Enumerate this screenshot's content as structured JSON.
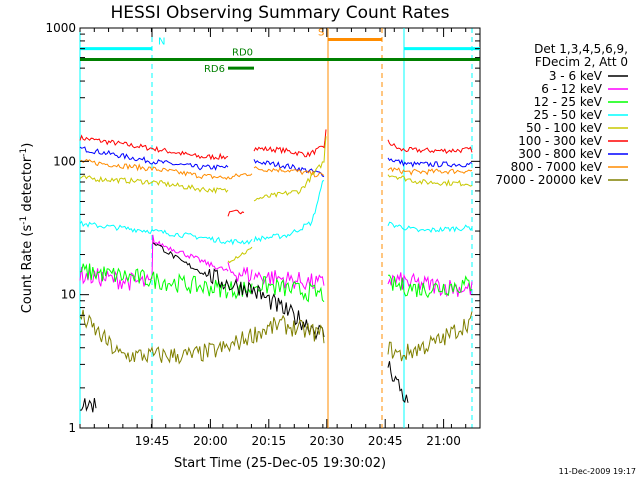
{
  "chart_data": {
    "type": "line",
    "title": "HESSI Observing Summary Count Rates",
    "xlabel": "Start Time (25-Dec-05 19:30:02)",
    "ylabel_main": "Count Rate (s",
    "ylabel_sup1": "-1",
    "ylabel_mid": " detector",
    "ylabel_sup2": "-1",
    "ylabel_end": ")",
    "footer": "11-Dec-2009 19:17",
    "y_scale": "log",
    "ylim": [
      1,
      1000
    ],
    "xlim": [
      0,
      100
    ],
    "x_ticks": [
      {
        "label": "19:45",
        "x": 18
      },
      {
        "label": "20:00",
        "x": 32.6
      },
      {
        "label": "20:15",
        "x": 47.2
      },
      {
        "label": "20:30",
        "x": 61.7
      },
      {
        "label": "20:45",
        "x": 76.3
      },
      {
        "label": "21:00",
        "x": 90.9
      }
    ],
    "y_ticks": [
      {
        "label": "1",
        "y": 1
      },
      {
        "label": "10",
        "y": 10
      },
      {
        "label": "100",
        "y": 100
      },
      {
        "label": "1000",
        "y": 1000
      }
    ],
    "legend": {
      "header1": "Det 1,3,4,5,6,9,",
      "header2": "FDecim 2, Att 0",
      "entries": [
        {
          "label": "3 - 6 keV",
          "color": "#000000"
        },
        {
          "label": "6 - 12 keV",
          "color": "#ff00ff"
        },
        {
          "label": "12 - 25 keV",
          "color": "#00ff00"
        },
        {
          "label": "25 - 50 keV",
          "color": "#00ffff"
        },
        {
          "label": "50 - 100 keV",
          "color": "#c8c800"
        },
        {
          "label": "100 - 300 keV",
          "color": "#ff0000"
        },
        {
          "label": "300 - 800 keV",
          "color": "#0000ff"
        },
        {
          "label": "800 - 7000 keV",
          "color": "#ff8c00"
        },
        {
          "label": "7000 - 20000 keV",
          "color": "#808000"
        }
      ]
    },
    "flags": [
      {
        "label": "N",
        "color": "#00ffff",
        "segments": [
          [
            0,
            18
          ],
          [
            81,
            100
          ]
        ],
        "y": 700
      },
      {
        "label": "RD0",
        "color": "#008000",
        "segments": [
          [
            0,
            100
          ]
        ],
        "y": 580
      },
      {
        "label": "RD6",
        "color": "#008000",
        "segments": [
          [
            37,
            43.5
          ]
        ],
        "y": 500
      },
      {
        "label": "S",
        "color": "#ff8c00",
        "segments": [
          [
            62,
            75.5
          ]
        ],
        "y": 820
      }
    ],
    "markers": [
      {
        "x": 0,
        "color": "#00ffff",
        "style": "solid"
      },
      {
        "x": 18,
        "color": "#00ffff",
        "style": "dashed"
      },
      {
        "x": 62,
        "color": "#ff8c00",
        "style": "solid"
      },
      {
        "x": 75.5,
        "color": "#ff8c00",
        "style": "dashed"
      },
      {
        "x": 81,
        "color": "#00ffff",
        "style": "solid"
      },
      {
        "x": 98,
        "color": "#00ffff",
        "style": "dashed"
      }
    ],
    "gap": [
      61.5,
      77
    ],
    "series": [
      {
        "color": "#ff0000",
        "segments": [
          [
            [
              0,
              150
            ],
            [
              18,
              125
            ],
            [
              30,
              108
            ],
            [
              37,
              108
            ]
          ],
          [
            [
              37,
              40
            ],
            [
              41,
              43
            ]
          ],
          [
            [
              43.5,
              125
            ],
            [
              50,
              122
            ],
            [
              57,
              112
            ],
            [
              61,
              128
            ],
            [
              61.5,
              170
            ]
          ],
          [
            [
              77,
              140
            ],
            [
              80,
              122
            ],
            [
              90,
              120
            ],
            [
              98,
              122
            ]
          ]
        ]
      },
      {
        "color": "#0000ff",
        "segments": [
          [
            [
              0,
              125
            ],
            [
              18,
              100
            ],
            [
              30,
              90
            ],
            [
              37,
              90
            ]
          ],
          [
            [
              43.5,
              100
            ],
            [
              52,
              92
            ],
            [
              61,
              80
            ]
          ],
          [
            [
              77,
              105
            ],
            [
              82,
              95
            ],
            [
              98,
              95
            ]
          ]
        ]
      },
      {
        "color": "#ff8c00",
        "segments": [
          [
            [
              0,
              100
            ],
            [
              18,
              88
            ],
            [
              30,
              78
            ],
            [
              37,
              75
            ]
          ],
          [
            [
              37,
              75
            ],
            [
              43,
              82
            ]
          ],
          [
            [
              43.5,
              88
            ],
            [
              52,
              86
            ],
            [
              61,
              78
            ]
          ],
          [
            [
              77,
              88
            ],
            [
              82,
              83
            ],
            [
              98,
              85
            ]
          ]
        ]
      },
      {
        "color": "#c8c800",
        "segments": [
          [
            [
              0,
              75
            ],
            [
              18,
              70
            ],
            [
              30,
              62
            ],
            [
              37,
              60
            ]
          ],
          [
            [
              37,
              18
            ],
            [
              43,
              22
            ]
          ],
          [
            [
              43.5,
              52
            ],
            [
              55,
              60
            ],
            [
              61,
              100
            ],
            [
              61.5,
              160
            ]
          ],
          [
            [
              77,
              80
            ],
            [
              85,
              70
            ],
            [
              98,
              68
            ]
          ]
        ]
      },
      {
        "color": "#00ffff",
        "segments": [
          [
            [
              0,
              34
            ],
            [
              18,
              30
            ],
            [
              30,
              27
            ],
            [
              37,
              25
            ]
          ],
          [
            [
              37,
              25
            ],
            [
              43,
              25
            ]
          ],
          [
            [
              43.5,
              26
            ],
            [
              52,
              28
            ],
            [
              58,
              35
            ],
            [
              61,
              75
            ]
          ],
          [
            [
              77,
              34
            ],
            [
              85,
              30
            ],
            [
              98,
              32
            ]
          ]
        ]
      },
      {
        "color": "#ff00ff",
        "segments": [
          [
            [
              0,
              14
            ],
            [
              18,
              12
            ],
            [
              18.2,
              25
            ],
            [
              25,
              21
            ],
            [
              32,
              17
            ],
            [
              37,
              15
            ]
          ],
          [
            [
              37,
              15
            ],
            [
              43,
              14
            ]
          ],
          [
            [
              43.5,
              14
            ],
            [
              52,
              13
            ],
            [
              61,
              12
            ]
          ],
          [
            [
              77,
              13
            ],
            [
              85,
              12
            ],
            [
              98,
              11
            ]
          ]
        ]
      },
      {
        "color": "#00ff00",
        "segments": [
          [
            [
              0,
              15
            ],
            [
              18,
              13
            ],
            [
              30,
              11.5
            ],
            [
              37,
              11
            ]
          ],
          [
            [
              37,
              11
            ],
            [
              43,
              11
            ]
          ],
          [
            [
              43.5,
              12
            ],
            [
              52,
              11
            ],
            [
              61,
              10
            ]
          ],
          [
            [
              77,
              12
            ],
            [
              85,
              11
            ],
            [
              98,
              12
            ]
          ]
        ]
      },
      {
        "color": "#000000",
        "segments": [
          [
            [
              0,
              1.5
            ],
            [
              4,
              1.5
            ]
          ],
          [
            [
              18.2,
              25
            ],
            [
              25,
              18
            ],
            [
              32,
              14
            ],
            [
              37,
              12
            ],
            [
              43,
              11
            ],
            [
              50,
              8
            ],
            [
              55,
              6.5
            ],
            [
              61,
              5
            ]
          ],
          [
            [
              77,
              3
            ],
            [
              80,
              2
            ],
            [
              82,
              1.5
            ]
          ]
        ]
      },
      {
        "color": "#808000",
        "segments": [
          [
            [
              0,
              7
            ],
            [
              5,
              5
            ],
            [
              10,
              3.5
            ],
            [
              18,
              3.5
            ],
            [
              28,
              3.5
            ],
            [
              37,
              4
            ],
            [
              43,
              5
            ],
            [
              50,
              6
            ],
            [
              55,
              5.5
            ],
            [
              61,
              5
            ]
          ],
          [
            [
              77,
              4
            ],
            [
              80,
              3.5
            ],
            [
              85,
              4
            ],
            [
              90,
              4.5
            ],
            [
              98,
              6.5
            ]
          ]
        ]
      }
    ]
  }
}
